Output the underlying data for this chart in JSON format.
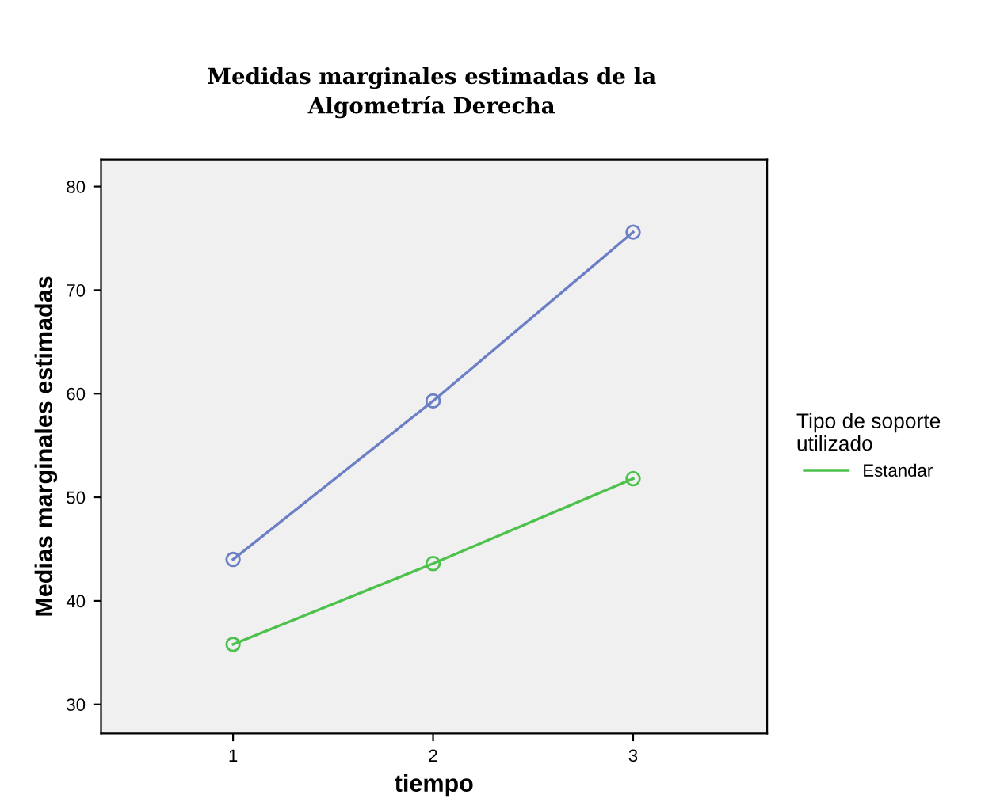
{
  "chart_data": {
    "type": "line",
    "title": "Medidas marginales estimadas de la\nAlgometría Derecha",
    "xlabel": "tiempo",
    "ylabel": "Medias marginales estimadas",
    "legend_title": "Tipo de soporte\nutilizado",
    "x": [
      1,
      2,
      3
    ],
    "series": [
      {
        "color": "#6b7fc6",
        "values": [
          44.0,
          59.3,
          75.6
        ]
      },
      {
        "name": "Estandar",
        "color": "#4cc24c",
        "values": [
          35.8,
          43.6,
          51.8
        ]
      }
    ],
    "xlim": [
      0.34,
      3.67
    ],
    "xticks": [
      1,
      2,
      3
    ],
    "ylim": [
      27.2,
      82.6
    ],
    "yticks": [
      30,
      40,
      50,
      60,
      70,
      80
    ],
    "marker": "circle",
    "line_style": "solid",
    "grid": false,
    "legend": "right"
  }
}
